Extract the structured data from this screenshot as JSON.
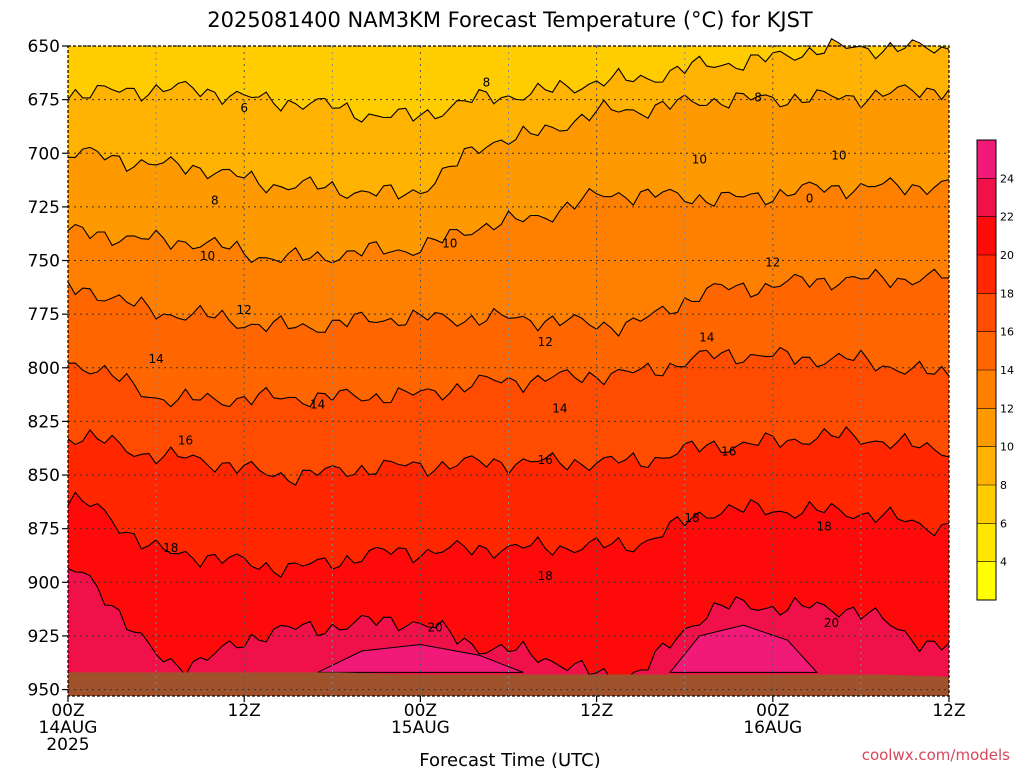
{
  "chart_data": {
    "type": "heatmap",
    "title": "2025081400 NAM3KM Forecast Temperature (°C) for KJST",
    "xlabel": "Forecast Time (UTC)",
    "ylabel": "",
    "y_axis": {
      "ticks": [
        650,
        675,
        700,
        725,
        750,
        775,
        800,
        825,
        850,
        875,
        900,
        925,
        950
      ],
      "range": [
        650,
        953
      ],
      "inverted": true
    },
    "x_axis": {
      "range_hours": [
        0,
        60
      ],
      "ticks": [
        {
          "hour": 0,
          "lines": [
            "00Z",
            "14AUG",
            "2025"
          ]
        },
        {
          "hour": 12,
          "lines": [
            "12Z"
          ]
        },
        {
          "hour": 24,
          "lines": [
            "00Z",
            "15AUG"
          ]
        },
        {
          "hour": 36,
          "lines": [
            "12Z"
          ]
        },
        {
          "hour": 48,
          "lines": [
            "00Z",
            "16AUG"
          ]
        },
        {
          "hour": 60,
          "lines": [
            "12Z"
          ]
        }
      ]
    },
    "grid": true,
    "colorbar": {
      "placement": "right",
      "levels": [
        4,
        6,
        8,
        10,
        12,
        14,
        16,
        18,
        20,
        22,
        24
      ],
      "colors": [
        "#ffff00",
        "#ffe600",
        "#ffcc00",
        "#ffb300",
        "#ff9900",
        "#ff8000",
        "#ff6600",
        "#ff4c00",
        "#ff2600",
        "#ff0a0a",
        "#f0104a",
        "#f21a78"
      ]
    },
    "isotherms": [
      {
        "level": 6,
        "p": [
          672,
          670,
          676,
          683,
          673,
          666,
          658,
          651,
          651
        ]
      },
      {
        "level": 8,
        "p": [
          700,
          706,
          715,
          719,
          693,
          680,
          675,
          674,
          670
        ]
      },
      {
        "level": 10,
        "p": [
          737,
          741,
          749,
          745,
          732,
          719,
          721,
          716,
          715
        ]
      },
      {
        "level": 12,
        "p": [
          763,
          775,
          781,
          777,
          777,
          780,
          763,
          759,
          758
        ]
      },
      {
        "level": 14,
        "p": [
          798,
          815,
          814,
          813,
          806,
          803,
          794,
          796,
          803
        ]
      },
      {
        "level": 16,
        "p": [
          832,
          842,
          850,
          846,
          844,
          844,
          836,
          832,
          838
        ]
      },
      {
        "level": 18,
        "p": [
          862,
          887,
          893,
          886,
          884,
          883,
          866,
          867,
          874
        ]
      },
      {
        "level": 20,
        "p": [
          895,
          938,
          922,
          918,
          932,
          944,
          911,
          912,
          930
        ]
      }
    ],
    "contour_labels": [
      {
        "text": "6",
        "hour": 12,
        "p": 679
      },
      {
        "text": "8",
        "hour": 28.5,
        "p": 667
      },
      {
        "text": "8",
        "hour": 47,
        "p": 674
      },
      {
        "text": "8",
        "hour": 10,
        "p": 722
      },
      {
        "text": "10",
        "hour": 43,
        "p": 703
      },
      {
        "text": "10",
        "hour": 52.5,
        "p": 701
      },
      {
        "text": "10",
        "hour": 26,
        "p": 742
      },
      {
        "text": "10",
        "hour": 9.5,
        "p": 748
      },
      {
        "text": "0",
        "hour": 50.5,
        "p": 721
      },
      {
        "text": "12",
        "hour": 48,
        "p": 751
      },
      {
        "text": "12",
        "hour": 12,
        "p": 773
      },
      {
        "text": "12",
        "hour": 32.5,
        "p": 788
      },
      {
        "text": "14",
        "hour": 6,
        "p": 796
      },
      {
        "text": "14",
        "hour": 43.5,
        "p": 786
      },
      {
        "text": "14",
        "hour": 17,
        "p": 817
      },
      {
        "text": "14",
        "hour": 33.5,
        "p": 819
      },
      {
        "text": "16",
        "hour": 8,
        "p": 834
      },
      {
        "text": "16",
        "hour": 45,
        "p": 839
      },
      {
        "text": "16",
        "hour": 32.5,
        "p": 843
      },
      {
        "text": "18",
        "hour": 42.5,
        "p": 870
      },
      {
        "text": "18",
        "hour": 51.5,
        "p": 874
      },
      {
        "text": "18",
        "hour": 7,
        "p": 884
      },
      {
        "text": "18",
        "hour": 32.5,
        "p": 897
      },
      {
        "text": "20",
        "hour": 25,
        "p": 921
      },
      {
        "text": "20",
        "hour": 52,
        "p": 919
      }
    ],
    "terrain": {
      "p_top": [
        942,
        942,
        942,
        942,
        942,
        943,
        943,
        943,
        943,
        943,
        943,
        943,
        943,
        944
      ],
      "color": "#a0522d"
    },
    "credit": "coolwx.com/models"
  }
}
